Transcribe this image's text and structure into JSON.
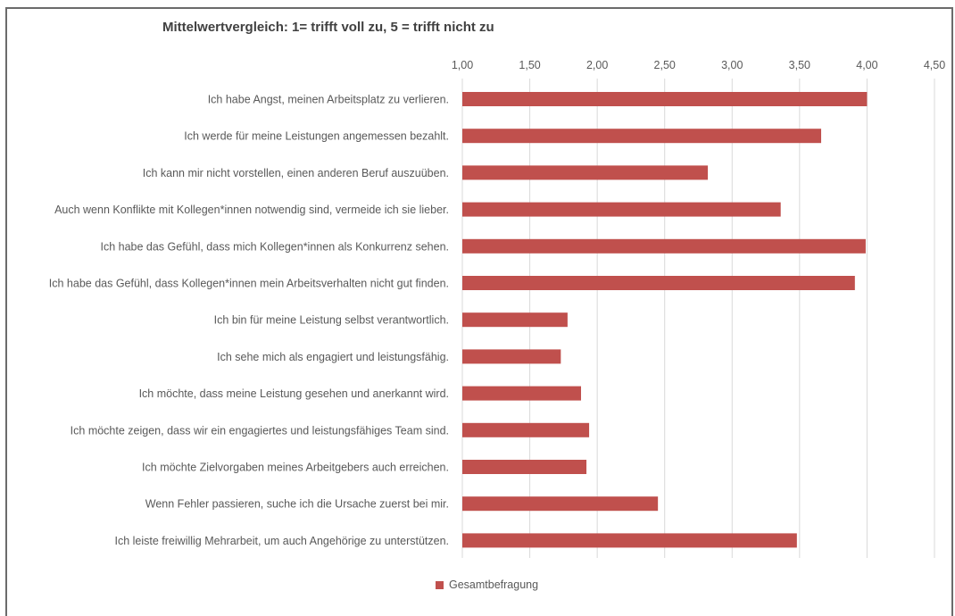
{
  "chart_data": {
    "type": "bar",
    "orientation": "horizontal",
    "title": "Mittelwertvergleich: 1= trifft voll zu, 5 = trifft nicht zu",
    "xlim": [
      1.0,
      4.5
    ],
    "x_ticks": [
      "1,00",
      "1,50",
      "2,00",
      "2,50",
      "3,00",
      "3,50",
      "4,00",
      "4,50"
    ],
    "x_tick_values": [
      1.0,
      1.5,
      2.0,
      2.5,
      3.0,
      3.5,
      4.0,
      4.5
    ],
    "grid": true,
    "legend_position": "bottom",
    "bar_color": "#C0504D",
    "categories": [
      "Ich habe Angst, meinen Arbeitsplatz zu verlieren.",
      "Ich werde für meine Leistungen angemessen bezahlt.",
      "Ich kann mir nicht vorstellen, einen anderen Beruf auszuüben.",
      "Auch wenn Konflikte mit Kollegen*innen notwendig sind, vermeide ich sie lieber.",
      "Ich habe das Gefühl, dass mich Kollegen*innen als Konkurrenz sehen.",
      "Ich habe das Gefühl, dass Kollegen*innen mein Arbeitsverhalten nicht gut finden.",
      "Ich bin für meine Leistung selbst verantwortlich.",
      "Ich sehe mich als engagiert und leistungsfähig.",
      "Ich möchte, dass meine Leistung gesehen und anerkannt wird.",
      "Ich möchte zeigen, dass wir ein engagiertes und leistungsfähiges Team sind.",
      "Ich möchte Zielvorgaben meines Arbeitgebers auch erreichen.",
      "Wenn Fehler passieren, suche ich die Ursache zuerst bei mir.",
      "Ich leiste freiwillig Mehrarbeit, um auch Angehörige zu unterstützen."
    ],
    "series": [
      {
        "name": "Gesamtbefragung",
        "values": [
          4.0,
          3.66,
          2.82,
          3.36,
          3.99,
          3.91,
          1.78,
          1.73,
          1.88,
          1.94,
          1.92,
          2.45,
          3.48
        ]
      }
    ]
  }
}
